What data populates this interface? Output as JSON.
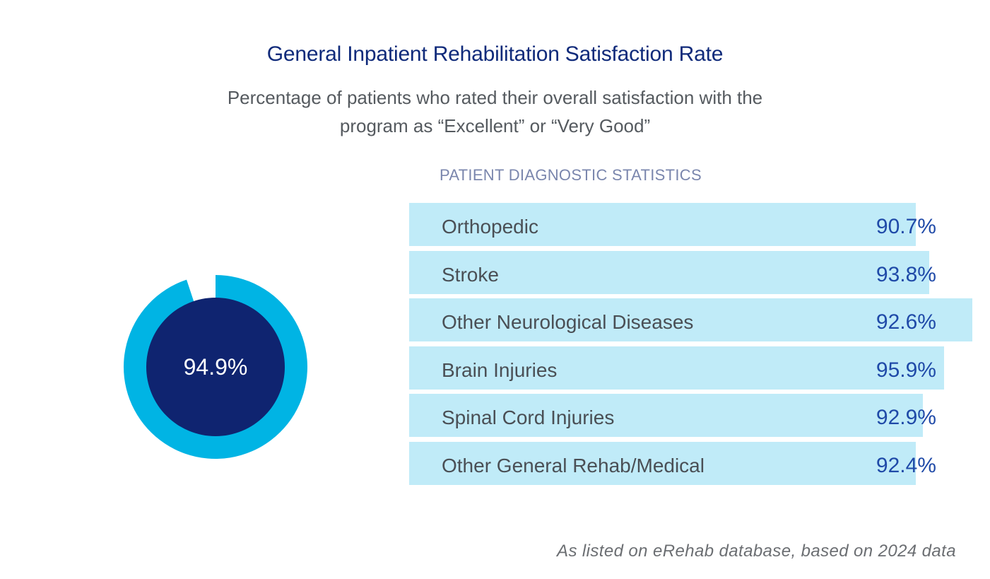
{
  "title": "General Inpatient Rehabilitation Satisfaction Rate",
  "subtitle_lines": [
    "Percentage of patients who rated their overall satisfaction with the",
    "program as “Excellent” or “Very Good”"
  ],
  "colors": {
    "title": "#0f2a7a",
    "donut_ring": "#00b4e4",
    "donut_center": "#0f2470",
    "bar_fill": "#c0ebf8",
    "bar_value": "#1f4aa8",
    "section_heading": "#7a86ad"
  },
  "chart_data": [
    {
      "type": "pie",
      "variant": "donut",
      "value": 94.9,
      "max": 100,
      "label": "94.9%"
    },
    {
      "type": "bar",
      "orientation": "horizontal",
      "title": "PATIENT DIAGNOSTIC STATISTICS",
      "categories": [
        "Orthopedic",
        "Stroke",
        "Other Neurological Diseases",
        "Brain Injuries",
        "Spinal Cord Injuries",
        "Other General Rehab/Medical"
      ],
      "values": [
        90.7,
        93.8,
        92.6,
        95.9,
        92.9,
        92.4
      ],
      "value_labels": [
        "90.7%",
        "93.8%",
        "92.6%",
        "95.9%",
        "92.9%",
        "92.4%"
      ]
    }
  ],
  "footnote": "As listed on eRehab database, based on 2024 data"
}
